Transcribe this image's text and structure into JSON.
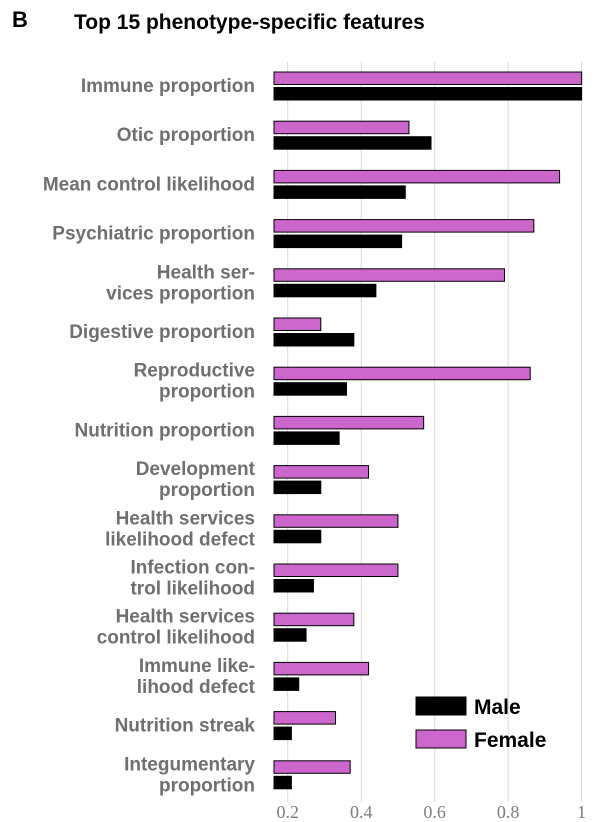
{
  "panel_label": "B",
  "chart_data": {
    "type": "bar",
    "orientation": "horizontal",
    "title": "Top 15 phenotype-specific features",
    "categories": [
      [
        "Immune proportion"
      ],
      [
        "Otic proportion"
      ],
      [
        "Mean control likelihood"
      ],
      [
        "Psychiatric proportion"
      ],
      [
        "Health ser-",
        "vices proportion"
      ],
      [
        "Digestive proportion"
      ],
      [
        "Reproductive",
        "proportion"
      ],
      [
        "Nutrition proportion"
      ],
      [
        "Development",
        "proportion"
      ],
      [
        "Health services",
        "likelihood defect"
      ],
      [
        "Infection con-",
        "trol likelihood"
      ],
      [
        "Health services",
        "control likelihood"
      ],
      [
        "Immune like-",
        "lihood defect"
      ],
      [
        "Nutrition streak"
      ],
      [
        "Integumentary",
        "proportion"
      ]
    ],
    "series": [
      {
        "name": "Female",
        "color": "#cc66cc",
        "values": [
          1.0,
          0.53,
          0.94,
          0.87,
          0.79,
          0.29,
          0.86,
          0.57,
          0.42,
          0.5,
          0.5,
          0.38,
          0.42,
          0.33,
          0.37
        ]
      },
      {
        "name": "Male",
        "color": "#000000",
        "values": [
          1.0,
          0.59,
          0.52,
          0.51,
          0.44,
          0.38,
          0.36,
          0.34,
          0.29,
          0.29,
          0.27,
          0.25,
          0.23,
          0.21,
          0.21
        ]
      }
    ],
    "xlim": [
      0.13,
      1.05
    ],
    "xticks": [
      0.2,
      0.4,
      0.6,
      0.8,
      1.0
    ],
    "xtick_labels": [
      "0.2",
      "0.4",
      "0.6",
      "0.8",
      "1"
    ],
    "xlabel": "",
    "ylabel": "",
    "grid": "vertical",
    "legend": {
      "placement": "bottom-right",
      "entries": [
        {
          "label": "Male",
          "color": "#000000"
        },
        {
          "label": "Female",
          "color": "#cc66cc"
        }
      ]
    }
  }
}
